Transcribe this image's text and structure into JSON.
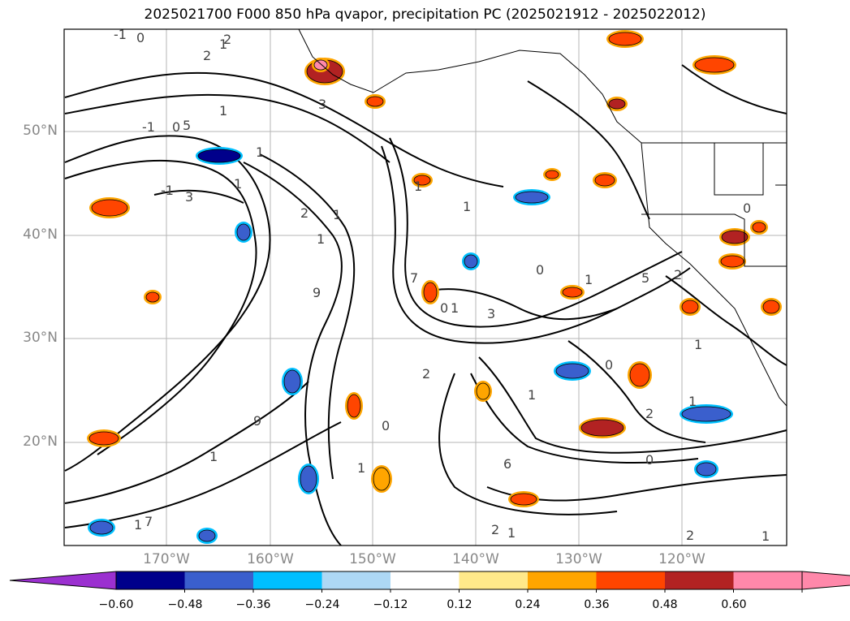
{
  "title": "2025021700 F000 850 hPa qvapor, precipitation PC (2025021912 - 2025022012)",
  "map": {
    "lat_labels": [
      "50°N",
      "40°N",
      "30°N",
      "20°N"
    ],
    "lon_labels": [
      "170°W",
      "160°W",
      "150°W",
      "140°W",
      "130°W",
      "120°W"
    ],
    "contour_labels": [
      "-1",
      "0",
      "2",
      "1",
      "3",
      "1",
      "2",
      "-1",
      "0",
      "1",
      "1",
      "-1",
      "3",
      "1",
      "1",
      "2",
      "1",
      "7",
      "9",
      "1",
      "0",
      "3",
      "2",
      "0",
      "1",
      "0",
      "5",
      "2",
      "1",
      "1",
      "2",
      "0",
      "1",
      "7",
      "1",
      "9",
      "6",
      "1",
      "1",
      "0",
      "1",
      "2",
      "2",
      "1",
      "5",
      "0",
      "1"
    ]
  },
  "colorbar": {
    "ticks": [
      "−0.60",
      "−0.48",
      "−0.36",
      "−0.24",
      "−0.12",
      "0.12",
      "0.24",
      "0.36",
      "0.48",
      "0.60"
    ],
    "colors": [
      "#9b30d0",
      "#00008b",
      "#3a5fcd",
      "#00bfff",
      "#add8f5",
      "#ffffff",
      "#ffe98a",
      "#ffa500",
      "#ff4500",
      "#b22222",
      "#ff88aa",
      "#ff88aa"
    ]
  }
}
